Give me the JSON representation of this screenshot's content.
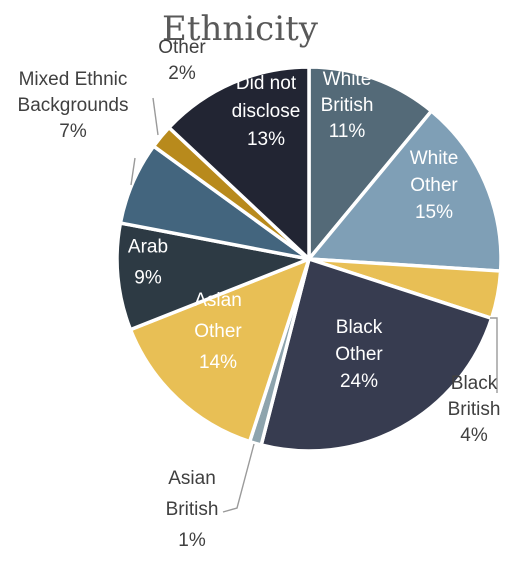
{
  "chart_data": {
    "type": "pie",
    "title": "Ethnicity",
    "slices": [
      {
        "label": "White British",
        "value": 11,
        "value_label": "11%",
        "color": "#546a78",
        "text_color": "#ffffff"
      },
      {
        "label": "White Other",
        "value": 15,
        "value_label": "15%",
        "color": "#7f9fb6",
        "text_color": "#ffffff"
      },
      {
        "label": "Black British",
        "value": 4,
        "value_label": "4%",
        "color": "#e8bf55",
        "text_color": "#404040"
      },
      {
        "label": "Black Other",
        "value": 24,
        "value_label": "24%",
        "color": "#373c50",
        "text_color": "#ffffff"
      },
      {
        "label": "Asian British",
        "value": 1,
        "value_label": "1%",
        "color": "#8ea4ad",
        "text_color": "#404040"
      },
      {
        "label": "Asian Other",
        "value": 14,
        "value_label": "14%",
        "color": "#e8bf55",
        "text_color": "#ffffff"
      },
      {
        "label": "Arab",
        "value": 9,
        "value_label": "9%",
        "color": "#2d3a44",
        "text_color": "#ffffff"
      },
      {
        "label": "Mixed Ethnic Backgrounds",
        "value": 7,
        "value_label": "7%",
        "color": "#43657e",
        "text_color": "#404040"
      },
      {
        "label": "Other",
        "value": 2,
        "value_label": "2%",
        "color": "#b88a1c",
        "text_color": "#404040"
      },
      {
        "label": "Did not disclose",
        "value": 13,
        "value_label": "13%",
        "color": "#222533",
        "text_color": "#ffffff"
      }
    ],
    "start_angle_deg": 0,
    "direction": "clockwise",
    "legend": "none"
  }
}
